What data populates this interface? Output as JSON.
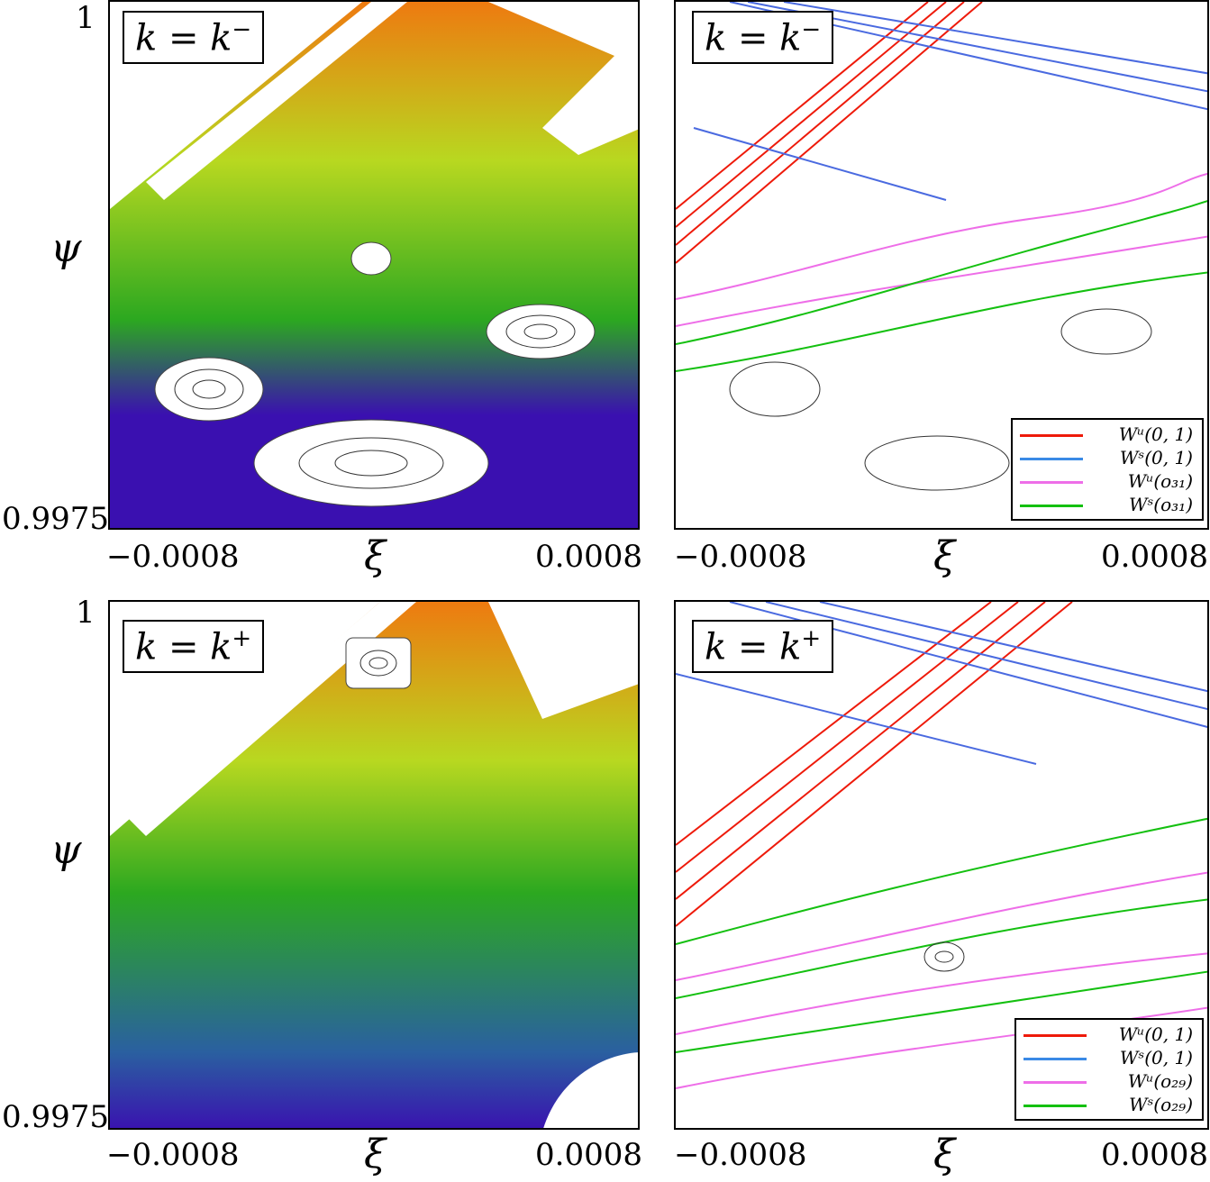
{
  "colors": {
    "red": "#ee1a0a",
    "blue": "#4a6ae0",
    "pink": "#ee6ee8",
    "green": "#14c010",
    "purple": "#3a10b0",
    "orange": "#ee7a10",
    "yellowgreen": "#b8d820",
    "chaos_green": "#2ca820"
  },
  "axes": {
    "xlabel": "ξ",
    "ylabel": "ψ",
    "x_ticks": [
      "−0.0008",
      "0.0008"
    ],
    "y_ticks": [
      "1",
      "0.9975"
    ]
  },
  "panels": [
    {
      "id": "top-left",
      "k_label": "k = k",
      "k_sup": "−"
    },
    {
      "id": "top-right",
      "k_label": "k = k",
      "k_sup": "−"
    },
    {
      "id": "bottom-left",
      "k_label": "k = k",
      "k_sup": "+"
    },
    {
      "id": "bottom-right",
      "k_label": "k = k",
      "k_sup": "+"
    }
  ],
  "legends": [
    {
      "panel": "top-right",
      "entries": [
        {
          "text": "Wᵘ(0, 1)",
          "color": "#ee1a0a"
        },
        {
          "text": "Wˢ(0, 1)",
          "color": "#3a8ae6"
        },
        {
          "text": "Wᵘ(o₃₁)",
          "color": "#ee6ee8"
        },
        {
          "text": "Wˢ(o₃₁)",
          "color": "#14c010"
        }
      ]
    },
    {
      "panel": "bottom-right",
      "entries": [
        {
          "text": "Wᵘ(0, 1)",
          "color": "#ee1a0a"
        },
        {
          "text": "Wˢ(0, 1)",
          "color": "#3a8ae6"
        },
        {
          "text": "Wᵘ(o₂₉)",
          "color": "#ee6ee8"
        },
        {
          "text": "Wˢ(o₂₉)",
          "color": "#14c010"
        }
      ]
    }
  ],
  "chart_data": [
    {
      "type": "scatter",
      "title": "",
      "panel": "top-left",
      "annotation": "k = k⁻",
      "xlabel": "ξ",
      "ylabel": "ψ",
      "xlim": [
        -0.0008,
        0.0008
      ],
      "ylim": [
        0.9975,
        1
      ],
      "x_ticks": [
        "−0.0008",
        "0.0008"
      ],
      "y_ticks": [
        "1",
        "0.9975"
      ]
    },
    {
      "type": "line",
      "title": "",
      "panel": "top-right",
      "annotation": "k = k⁻",
      "xlabel": "ξ",
      "xlim": [
        -0.0008,
        0.0008
      ],
      "ylim": [
        0.9975,
        1
      ],
      "x_ticks": [
        "−0.0008",
        "0.0008"
      ],
      "series": [
        {
          "name": "Wᵘ(0, 1)"
        },
        {
          "name": "Wˢ(0, 1)"
        },
        {
          "name": "Wᵘ(o₃₁)"
        },
        {
          "name": "Wˢ(o₃₁)"
        }
      ]
    },
    {
      "type": "scatter",
      "title": "",
      "panel": "bottom-left",
      "annotation": "k = k⁺",
      "xlabel": "ξ",
      "ylabel": "ψ",
      "xlim": [
        -0.0008,
        0.0008
      ],
      "ylim": [
        0.9975,
        1
      ],
      "x_ticks": [
        "−0.0008",
        "0.0008"
      ],
      "y_ticks": [
        "1",
        "0.9975"
      ]
    },
    {
      "type": "line",
      "title": "",
      "panel": "bottom-right",
      "annotation": "k = k⁺",
      "xlabel": "ξ",
      "xlim": [
        -0.0008,
        0.0008
      ],
      "ylim": [
        0.9975,
        1
      ],
      "x_ticks": [
        "−0.0008",
        "0.0008"
      ],
      "series": [
        {
          "name": "Wᵘ(0, 1)"
        },
        {
          "name": "Wˢ(0, 1)"
        },
        {
          "name": "Wᵘ(o₂₉)"
        },
        {
          "name": "Wˢ(o₂₉)"
        }
      ]
    }
  ]
}
